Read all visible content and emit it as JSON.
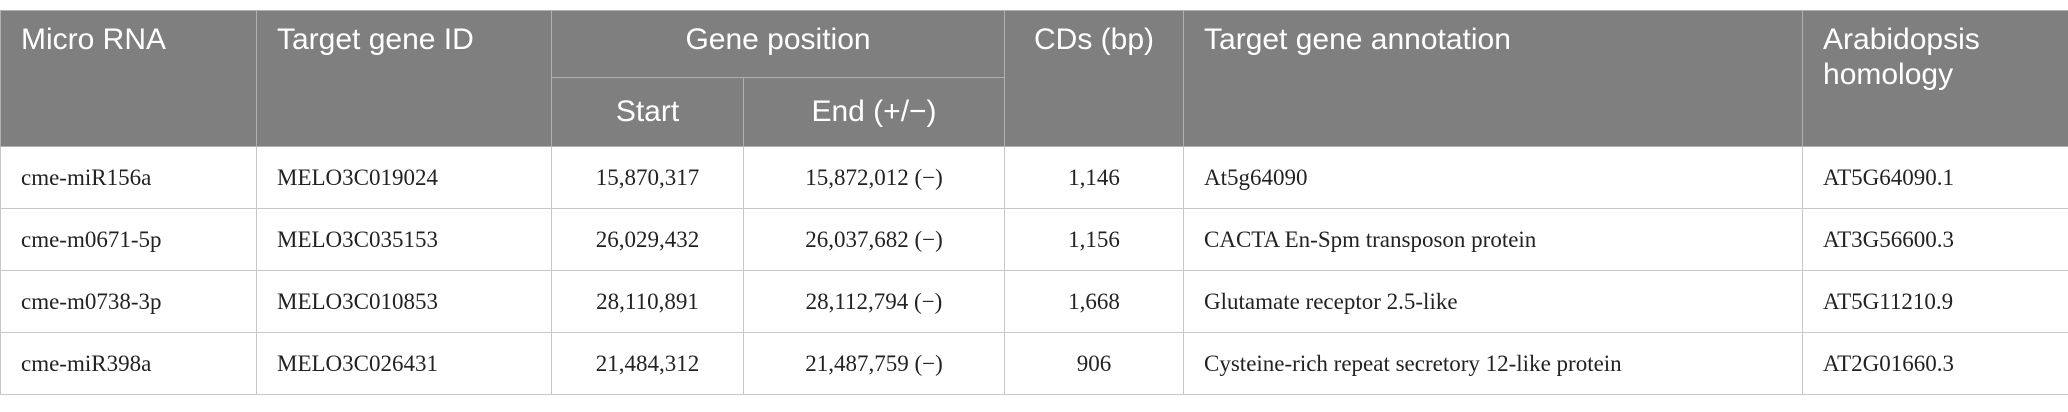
{
  "table": {
    "header": {
      "row1": [
        "Micro RNA",
        "Target gene ID",
        "Gene position",
        "CDs (bp)",
        "Target gene annotation",
        "Arabidopsis homology"
      ],
      "row2": [
        "Start",
        "End (+/−)"
      ]
    },
    "rows": [
      [
        "cme-miR156a",
        "MELO3C019024",
        "15,870,317",
        "15,872,012 (−)",
        "1,146",
        "At5g64090",
        "AT5G64090.1"
      ],
      [
        "cme-m0671-5p",
        "MELO3C035153",
        "26,029,432",
        "26,037,682 (−)",
        "1,156",
        "CACTA En-Spm transposon protein",
        "AT3G56600.3"
      ],
      [
        "cme-m0738-3p",
        "MELO3C010853",
        "28,110,891",
        "28,112,794 (−)",
        "1,668",
        "Glutamate receptor 2.5-like",
        "AT5G11210.9"
      ],
      [
        "cme-miR398a",
        "MELO3C026431",
        "21,484,312",
        "21,487,759 (−)",
        "906",
        "Cysteine-rich repeat secretory 12-like protein",
        "AT2G01660.3"
      ]
    ]
  }
}
